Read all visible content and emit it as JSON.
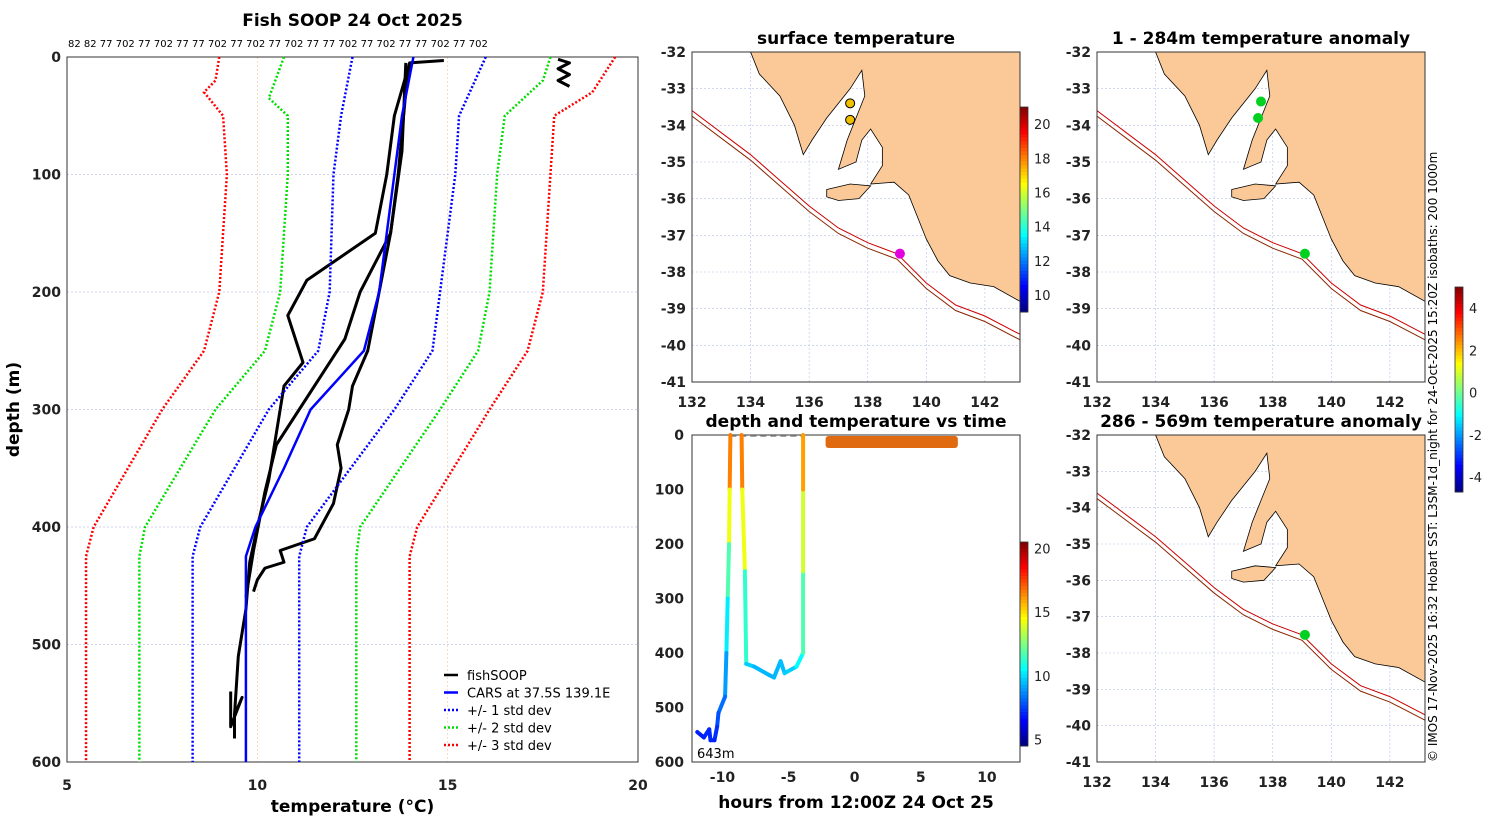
{
  "colors": {
    "land": "#fbc998",
    "fish": "#000000",
    "cars": "#0000ff",
    "sd1": "#0000ff",
    "sd2": "#00dd00",
    "sd3": "#ff0000",
    "isobath200": "#cc0000",
    "isobath1000": "#8b2500",
    "dash": "#888888",
    "surface_block": "#e06a10"
  },
  "footer": "© IMOS 17-Nov-2025 16:32 Hobart SST: L3SM-1d_night for 24-Oct-2025 15:20Z isobaths: 200  1000m",
  "chart_data": [
    {
      "type": "line",
      "title": "Fish SOOP 24 Oct 2025",
      "top_labels": "82 82 77 702 77 702 77 77 702 77 702 77 702 77 77 702 77 702 77 77 702 77 702",
      "xlabel": "temperature (°C)",
      "ylabel": "depth (m)",
      "xlim": [
        5,
        20
      ],
      "ylim": [
        0,
        600
      ],
      "xticks": [
        5,
        10,
        15,
        20
      ],
      "yticks": [
        0,
        100,
        200,
        300,
        400,
        500,
        600
      ],
      "legend": {
        "position": "bottom-right",
        "entries": [
          "fishSOOP",
          "CARS at 37.5S 139.1E",
          "+/- 1 std dev",
          "+/- 2 std dev",
          "+/- 3 std dev"
        ]
      },
      "series": [
        {
          "name": "fishSOOP",
          "casts": [
            [
              [
                14.9,
                3
              ],
              [
                14.0,
                5
              ],
              [
                13.9,
                30
              ],
              [
                13.7,
                100
              ],
              [
                13.5,
                150
              ],
              [
                13.2,
                200
              ],
              [
                12.9,
                250
              ],
              [
                12.5,
                280
              ],
              [
                12.4,
                300
              ],
              [
                12.1,
                330
              ],
              [
                12.2,
                350
              ],
              [
                12.0,
                380
              ],
              [
                11.5,
                410
              ],
              [
                10.6,
                420
              ],
              [
                10.7,
                430
              ],
              [
                10.2,
                435
              ],
              [
                10.0,
                445
              ],
              [
                9.9,
                455
              ]
            ],
            [
              [
                14.0,
                5
              ],
              [
                13.6,
                50
              ],
              [
                13.4,
                100
              ],
              [
                13.1,
                150
              ],
              [
                12.2,
                170
              ],
              [
                11.3,
                190
              ],
              [
                10.8,
                220
              ],
              [
                11.2,
                260
              ],
              [
                10.7,
                280
              ],
              [
                10.5,
                320
              ],
              [
                10.3,
                360
              ],
              [
                10.0,
                400
              ],
              [
                9.8,
                430
              ],
              [
                9.7,
                470
              ],
              [
                9.5,
                510
              ],
              [
                9.4,
                560
              ],
              [
                9.4,
                580
              ]
            ],
            [
              [
                13.9,
                5
              ],
              [
                13.8,
                80
              ],
              [
                13.5,
                150
              ],
              [
                12.7,
                200
              ],
              [
                12.3,
                240
              ],
              [
                11.5,
                280
              ],
              [
                10.5,
                330
              ],
              [
                10.2,
                370
              ],
              [
                9.9,
                420
              ],
              [
                9.8,
                440
              ],
              [
                9.7,
                460
              ]
            ],
            [
              [
                17.9,
                2
              ],
              [
                18.2,
                5
              ],
              [
                17.9,
                10
              ],
              [
                18.2,
                15
              ],
              [
                17.9,
                20
              ],
              [
                18.2,
                25
              ]
            ],
            [
              [
                9.3,
                540
              ],
              [
                9.3,
                570
              ],
              [
                9.6,
                545
              ],
              [
                9.4,
                560
              ]
            ]
          ]
        },
        {
          "name": "CARS at 37.5S 139.1E",
          "points": [
            [
              14.1,
              0
            ],
            [
              13.8,
              50
            ],
            [
              13.6,
              100
            ],
            [
              13.4,
              150
            ],
            [
              13.2,
              200
            ],
            [
              12.8,
              250
            ],
            [
              11.4,
              300
            ],
            [
              10.7,
              350
            ],
            [
              9.95,
              400
            ],
            [
              9.7,
              425
            ],
            [
              9.7,
              600
            ]
          ]
        },
        {
          "name": "-1 std",
          "points": [
            [
              12.5,
              0
            ],
            [
              12.2,
              50
            ],
            [
              12.0,
              100
            ],
            [
              11.9,
              200
            ],
            [
              11.6,
              250
            ],
            [
              10.3,
              300
            ],
            [
              8.5,
              400
            ],
            [
              8.3,
              425
            ],
            [
              8.3,
              600
            ]
          ]
        },
        {
          "name": "+1 std",
          "points": [
            [
              16.0,
              0
            ],
            [
              15.3,
              50
            ],
            [
              15.2,
              100
            ],
            [
              14.8,
              200
            ],
            [
              14.6,
              250
            ],
            [
              13.6,
              300
            ],
            [
              11.3,
              400
            ],
            [
              11.1,
              425
            ],
            [
              11.1,
              600
            ]
          ]
        },
        {
          "name": "-2 std",
          "points": [
            [
              10.7,
              0
            ],
            [
              10.3,
              35
            ],
            [
              10.8,
              50
            ],
            [
              10.8,
              100
            ],
            [
              10.6,
              200
            ],
            [
              10.2,
              250
            ],
            [
              8.9,
              300
            ],
            [
              7.05,
              400
            ],
            [
              6.9,
              425
            ],
            [
              6.9,
              600
            ]
          ]
        },
        {
          "name": "+2 std",
          "points": [
            [
              17.7,
              0
            ],
            [
              17.5,
              20
            ],
            [
              16.5,
              50
            ],
            [
              16.3,
              100
            ],
            [
              16.1,
              200
            ],
            [
              15.8,
              250
            ],
            [
              14.8,
              300
            ],
            [
              12.7,
              400
            ],
            [
              12.6,
              425
            ],
            [
              12.6,
              600
            ]
          ]
        },
        {
          "name": "-3 std",
          "points": [
            [
              9.0,
              0
            ],
            [
              8.9,
              20
            ],
            [
              8.6,
              30
            ],
            [
              9.1,
              50
            ],
            [
              9.2,
              100
            ],
            [
              9.0,
              200
            ],
            [
              8.6,
              250
            ],
            [
              7.5,
              300
            ],
            [
              5.7,
              400
            ],
            [
              5.5,
              425
            ],
            [
              5.5,
              600
            ]
          ]
        },
        {
          "name": "+3 std",
          "points": [
            [
              19.4,
              0
            ],
            [
              19.0,
              20
            ],
            [
              18.8,
              30
            ],
            [
              17.8,
              50
            ],
            [
              17.7,
              100
            ],
            [
              17.5,
              200
            ],
            [
              17.1,
              250
            ],
            [
              16.1,
              300
            ],
            [
              14.2,
              400
            ],
            [
              14.0,
              425
            ],
            [
              14.0,
              600
            ]
          ]
        }
      ]
    },
    {
      "type": "map",
      "title": "surface temperature",
      "lon_range": [
        132,
        143.2
      ],
      "lat_range": [
        -41,
        -32
      ],
      "xticks": [
        132,
        134,
        136,
        138,
        140,
        142
      ],
      "yticks": [
        -32,
        -33,
        -34,
        -35,
        -36,
        -37,
        -38,
        -39,
        -40,
        -41
      ],
      "colorbar": {
        "range": [
          9,
          21
        ],
        "ticks": [
          10,
          12,
          14,
          16,
          18,
          20
        ]
      },
      "points": [
        {
          "lon": 137.4,
          "lat": -33.4,
          "color": "#f0c000"
        },
        {
          "lon": 137.4,
          "lat": -33.85,
          "color": "#f0c000"
        },
        {
          "lon": 139.1,
          "lat": -37.5,
          "color": "#e000e0"
        }
      ]
    },
    {
      "type": "map",
      "title": "1 - 284m temperature anomaly",
      "lon_range": [
        132,
        143.2
      ],
      "lat_range": [
        -41,
        -32
      ],
      "xticks": [
        132,
        134,
        136,
        138,
        140,
        142
      ],
      "yticks": [
        -32,
        -33,
        -34,
        -35,
        -36,
        -37,
        -38,
        -39,
        -40,
        -41
      ],
      "colorbar": {
        "range": [
          -4.7,
          5
        ],
        "ticks": [
          -4,
          -2,
          0,
          2,
          4
        ]
      },
      "points": [
        {
          "lon": 137.6,
          "lat": -33.35,
          "color": "#00d020"
        },
        {
          "lon": 137.5,
          "lat": -33.8,
          "color": "#00d020"
        },
        {
          "lon": 139.1,
          "lat": -37.5,
          "color": "#00d020"
        }
      ]
    },
    {
      "type": "map",
      "title": "286 - 569m temperature anomaly",
      "lon_range": [
        132,
        143.2
      ],
      "lat_range": [
        -41,
        -32
      ],
      "xticks": [
        132,
        134,
        136,
        138,
        140,
        142
      ],
      "yticks": [
        -32,
        -33,
        -34,
        -35,
        -36,
        -37,
        -38,
        -39,
        -40,
        -41
      ],
      "points": [
        {
          "lon": 139.1,
          "lat": -37.5,
          "color": "#00d020"
        }
      ]
    },
    {
      "type": "line",
      "title": "depth and temperature vs time",
      "xlabel": "hours from 12:00Z 24 Oct 25",
      "xlim": [
        -12.3,
        12.5
      ],
      "ylim": [
        0,
        600
      ],
      "xticks": [
        -10,
        -5,
        0,
        5,
        10
      ],
      "yticks": [
        0,
        100,
        200,
        300,
        400,
        500,
        600
      ],
      "annotation": "643m",
      "colorbar": {
        "range": [
          4.5,
          20.5
        ],
        "ticks": [
          5,
          10,
          15,
          20
        ]
      },
      "tracks": [
        [
          [
            -9.4,
            0,
            17
          ],
          [
            -9.45,
            100,
            16
          ],
          [
            -9.5,
            200,
            12.5
          ],
          [
            -9.6,
            300,
            11
          ],
          [
            -9.7,
            400,
            9.5
          ],
          [
            -9.8,
            480,
            8.5
          ],
          [
            -10.3,
            510,
            8
          ],
          [
            -10.4,
            535,
            7.5
          ],
          [
            -10.6,
            560,
            7
          ],
          [
            -10.9,
            560,
            7
          ],
          [
            -11,
            540,
            7.2
          ],
          [
            -11.4,
            555,
            7
          ],
          [
            -11.9,
            545,
            7
          ]
        ],
        [
          [
            -8.55,
            0,
            17
          ],
          [
            -8.5,
            100,
            16
          ],
          [
            -8.3,
            250,
            12.5
          ],
          [
            -8.2,
            420,
            10
          ],
          [
            -7.6,
            425,
            9.5
          ],
          [
            -6.5,
            440,
            9.3
          ],
          [
            -6.1,
            445,
            9.3
          ],
          [
            -5.6,
            415,
            9.5
          ],
          [
            -5.3,
            437,
            9.5
          ],
          [
            -4.4,
            425,
            10
          ],
          [
            -3.9,
            400,
            11
          ],
          [
            -3.9,
            250,
            12.5
          ],
          [
            -3.9,
            100,
            15
          ],
          [
            -3.9,
            0,
            17
          ]
        ]
      ],
      "surface_segment": {
        "hours": [
          -9.4,
          -3.9
        ],
        "depth": 0
      },
      "surface_block": {
        "hours": [
          -2.2,
          7.8
        ],
        "depth": [
          0,
          22
        ],
        "temp": 19
      }
    }
  ],
  "geo": {
    "land": [
      [
        134.0,
        -32
      ],
      [
        134.3,
        -32.6
      ],
      [
        135.0,
        -33.2
      ],
      [
        135.5,
        -34.0
      ],
      [
        135.8,
        -34.8
      ],
      [
        136.1,
        -34.4
      ],
      [
        136.6,
        -33.8
      ],
      [
        137.4,
        -33.0
      ],
      [
        137.8,
        -32.5
      ],
      [
        137.9,
        -33.2
      ],
      [
        137.6,
        -33.8
      ],
      [
        137.3,
        -34.4
      ],
      [
        137.0,
        -35.2
      ],
      [
        137.6,
        -35.0
      ],
      [
        137.8,
        -34.4
      ],
      [
        138.1,
        -34.1
      ],
      [
        138.5,
        -34.6
      ],
      [
        138.5,
        -35.1
      ],
      [
        138.1,
        -35.6
      ],
      [
        138.9,
        -35.55
      ],
      [
        139.4,
        -35.9
      ],
      [
        139.7,
        -36.5
      ],
      [
        140.0,
        -37.1
      ],
      [
        140.4,
        -37.7
      ],
      [
        140.8,
        -38.1
      ],
      [
        141.5,
        -38.3
      ],
      [
        142.3,
        -38.4
      ],
      [
        143.2,
        -38.8
      ],
      [
        143.3,
        -32
      ],
      [
        134.0,
        -32
      ]
    ],
    "island": [
      [
        136.6,
        -35.75
      ],
      [
        137.4,
        -35.6
      ],
      [
        138.1,
        -35.65
      ],
      [
        137.7,
        -36.0
      ],
      [
        137.0,
        -36.05
      ],
      [
        136.6,
        -35.95
      ]
    ],
    "iso200": [
      [
        132,
        -33.6
      ],
      [
        133,
        -34.2
      ],
      [
        134,
        -34.8
      ],
      [
        135,
        -35.5
      ],
      [
        136,
        -36.2
      ],
      [
        137,
        -36.8
      ],
      [
        138,
        -37.2
      ],
      [
        139,
        -37.5
      ],
      [
        140,
        -38.3
      ],
      [
        141,
        -38.9
      ],
      [
        142,
        -39.2
      ],
      [
        143.2,
        -39.7
      ]
    ],
    "iso1000": [
      [
        132,
        -33.75
      ],
      [
        133,
        -34.35
      ],
      [
        134,
        -34.95
      ],
      [
        135,
        -35.65
      ],
      [
        136,
        -36.35
      ],
      [
        137,
        -36.95
      ],
      [
        138,
        -37.35
      ],
      [
        139,
        -37.65
      ],
      [
        140,
        -38.45
      ],
      [
        141,
        -39.05
      ],
      [
        142,
        -39.35
      ],
      [
        143.2,
        -39.85
      ]
    ]
  }
}
